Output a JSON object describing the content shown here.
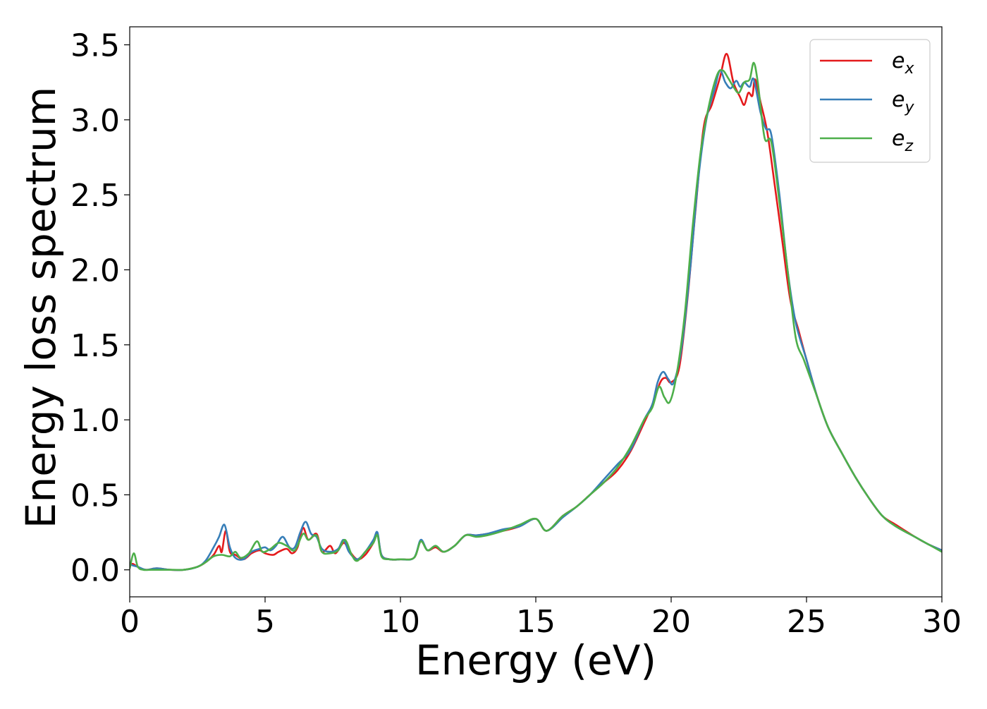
{
  "chart_data": {
    "type": "line",
    "title": "",
    "xlabel": "Energy (eV)",
    "ylabel": "Energy loss spectrum",
    "xlim": [
      0,
      30
    ],
    "ylim": [
      -0.18,
      3.62
    ],
    "xticks": [
      0,
      5,
      10,
      15,
      20,
      25,
      30
    ],
    "xtick_labels": [
      "0",
      "5",
      "10",
      "15",
      "20",
      "25",
      "30"
    ],
    "yticks": [
      0.0,
      0.5,
      1.0,
      1.5,
      2.0,
      2.5,
      3.0,
      3.5
    ],
    "ytick_labels": [
      "0.0",
      "0.5",
      "1.0",
      "1.5",
      "2.0",
      "2.5",
      "3.0",
      "3.5"
    ],
    "grid": false,
    "legend_position": "top-right",
    "series": [
      {
        "name": "e_x",
        "legend_base": "e",
        "legend_sub": "x",
        "color": "#e41a1c",
        "points": [
          [
            0,
            0.02
          ],
          [
            0.1,
            0.04
          ],
          [
            0.3,
            0.02
          ],
          [
            0.6,
            0.0
          ],
          [
            1.0,
            0.01
          ],
          [
            1.5,
            0.0
          ],
          [
            2.0,
            0.0
          ],
          [
            2.5,
            0.02
          ],
          [
            2.8,
            0.05
          ],
          [
            3.1,
            0.1
          ],
          [
            3.3,
            0.16
          ],
          [
            3.4,
            0.12
          ],
          [
            3.55,
            0.26
          ],
          [
            3.7,
            0.12
          ],
          [
            3.9,
            0.1
          ],
          [
            4.2,
            0.07
          ],
          [
            4.5,
            0.11
          ],
          [
            4.8,
            0.13
          ],
          [
            5.0,
            0.11
          ],
          [
            5.3,
            0.1
          ],
          [
            5.5,
            0.12
          ],
          [
            5.8,
            0.14
          ],
          [
            6.0,
            0.11
          ],
          [
            6.2,
            0.15
          ],
          [
            6.4,
            0.28
          ],
          [
            6.6,
            0.2
          ],
          [
            6.9,
            0.24
          ],
          [
            7.1,
            0.12
          ],
          [
            7.4,
            0.16
          ],
          [
            7.6,
            0.11
          ],
          [
            7.9,
            0.18
          ],
          [
            8.1,
            0.13
          ],
          [
            8.4,
            0.07
          ],
          [
            8.7,
            0.1
          ],
          [
            9.0,
            0.18
          ],
          [
            9.15,
            0.24
          ],
          [
            9.3,
            0.1
          ],
          [
            9.6,
            0.07
          ],
          [
            10.0,
            0.07
          ],
          [
            10.5,
            0.08
          ],
          [
            10.75,
            0.19
          ],
          [
            11.0,
            0.13
          ],
          [
            11.3,
            0.15
          ],
          [
            11.6,
            0.12
          ],
          [
            12.0,
            0.16
          ],
          [
            12.4,
            0.23
          ],
          [
            12.8,
            0.23
          ],
          [
            13.2,
            0.24
          ],
          [
            13.8,
            0.26
          ],
          [
            14.4,
            0.29
          ],
          [
            15.0,
            0.34
          ],
          [
            15.4,
            0.26
          ],
          [
            16.0,
            0.36
          ],
          [
            16.5,
            0.42
          ],
          [
            17.0,
            0.5
          ],
          [
            17.5,
            0.58
          ],
          [
            18.0,
            0.66
          ],
          [
            18.5,
            0.79
          ],
          [
            19.0,
            0.98
          ],
          [
            19.3,
            1.1
          ],
          [
            19.6,
            1.25
          ],
          [
            19.8,
            1.28
          ],
          [
            20.0,
            1.25
          ],
          [
            20.3,
            1.35
          ],
          [
            20.6,
            1.8
          ],
          [
            20.9,
            2.4
          ],
          [
            21.2,
            2.95
          ],
          [
            21.5,
            3.1
          ],
          [
            21.8,
            3.28
          ],
          [
            22.05,
            3.44
          ],
          [
            22.3,
            3.25
          ],
          [
            22.55,
            3.15
          ],
          [
            22.7,
            3.1
          ],
          [
            22.85,
            3.18
          ],
          [
            23.0,
            3.16
          ],
          [
            23.1,
            3.27
          ],
          [
            23.3,
            3.12
          ],
          [
            23.55,
            2.92
          ],
          [
            23.8,
            2.6
          ],
          [
            24.1,
            2.2
          ],
          [
            24.4,
            1.8
          ],
          [
            24.7,
            1.6
          ],
          [
            25.0,
            1.4
          ],
          [
            25.4,
            1.15
          ],
          [
            25.8,
            0.95
          ],
          [
            26.3,
            0.78
          ],
          [
            26.8,
            0.62
          ],
          [
            27.3,
            0.48
          ],
          [
            27.8,
            0.36
          ],
          [
            28.3,
            0.3
          ],
          [
            29.0,
            0.22
          ],
          [
            29.5,
            0.17
          ],
          [
            30.0,
            0.13
          ]
        ]
      },
      {
        "name": "e_y",
        "legend_base": "e",
        "legend_sub": "y",
        "color": "#377eb8",
        "points": [
          [
            0,
            0.04
          ],
          [
            0.1,
            0.03
          ],
          [
            0.3,
            0.02
          ],
          [
            0.6,
            0.0
          ],
          [
            1.0,
            0.01
          ],
          [
            1.5,
            0.0
          ],
          [
            2.0,
            0.0
          ],
          [
            2.5,
            0.02
          ],
          [
            2.8,
            0.06
          ],
          [
            3.1,
            0.15
          ],
          [
            3.3,
            0.22
          ],
          [
            3.5,
            0.3
          ],
          [
            3.7,
            0.15
          ],
          [
            3.9,
            0.08
          ],
          [
            4.2,
            0.07
          ],
          [
            4.5,
            0.12
          ],
          [
            4.8,
            0.14
          ],
          [
            5.0,
            0.15
          ],
          [
            5.2,
            0.13
          ],
          [
            5.4,
            0.16
          ],
          [
            5.65,
            0.22
          ],
          [
            5.9,
            0.15
          ],
          [
            6.1,
            0.15
          ],
          [
            6.3,
            0.25
          ],
          [
            6.5,
            0.32
          ],
          [
            6.7,
            0.24
          ],
          [
            6.9,
            0.22
          ],
          [
            7.1,
            0.14
          ],
          [
            7.4,
            0.12
          ],
          [
            7.7,
            0.14
          ],
          [
            7.9,
            0.2
          ],
          [
            8.1,
            0.12
          ],
          [
            8.4,
            0.07
          ],
          [
            8.7,
            0.12
          ],
          [
            9.0,
            0.2
          ],
          [
            9.15,
            0.25
          ],
          [
            9.3,
            0.1
          ],
          [
            9.6,
            0.07
          ],
          [
            10.0,
            0.07
          ],
          [
            10.5,
            0.08
          ],
          [
            10.75,
            0.2
          ],
          [
            11.0,
            0.13
          ],
          [
            11.3,
            0.16
          ],
          [
            11.6,
            0.12
          ],
          [
            12.0,
            0.16
          ],
          [
            12.4,
            0.23
          ],
          [
            12.8,
            0.23
          ],
          [
            13.2,
            0.24
          ],
          [
            13.8,
            0.27
          ],
          [
            14.4,
            0.29
          ],
          [
            15.0,
            0.34
          ],
          [
            15.4,
            0.26
          ],
          [
            16.0,
            0.35
          ],
          [
            16.5,
            0.42
          ],
          [
            17.0,
            0.5
          ],
          [
            17.5,
            0.6
          ],
          [
            18.0,
            0.7
          ],
          [
            18.5,
            0.8
          ],
          [
            19.0,
            1.0
          ],
          [
            19.3,
            1.1
          ],
          [
            19.5,
            1.25
          ],
          [
            19.7,
            1.32
          ],
          [
            19.9,
            1.27
          ],
          [
            20.1,
            1.25
          ],
          [
            20.4,
            1.5
          ],
          [
            20.7,
            2.0
          ],
          [
            21.0,
            2.6
          ],
          [
            21.3,
            3.0
          ],
          [
            21.6,
            3.2
          ],
          [
            21.8,
            3.33
          ],
          [
            22.0,
            3.25
          ],
          [
            22.2,
            3.21
          ],
          [
            22.4,
            3.26
          ],
          [
            22.55,
            3.22
          ],
          [
            22.7,
            3.25
          ],
          [
            22.9,
            3.22
          ],
          [
            23.05,
            3.27
          ],
          [
            23.3,
            3.05
          ],
          [
            23.5,
            2.94
          ],
          [
            23.7,
            2.9
          ],
          [
            24.0,
            2.5
          ],
          [
            24.3,
            2.0
          ],
          [
            24.6,
            1.65
          ],
          [
            25.0,
            1.4
          ],
          [
            25.4,
            1.15
          ],
          [
            25.8,
            0.95
          ],
          [
            26.3,
            0.78
          ],
          [
            26.8,
            0.62
          ],
          [
            27.3,
            0.48
          ],
          [
            27.8,
            0.36
          ],
          [
            28.3,
            0.29
          ],
          [
            29.0,
            0.22
          ],
          [
            29.5,
            0.17
          ],
          [
            30.0,
            0.13
          ]
        ]
      },
      {
        "name": "e_z",
        "legend_base": "e",
        "legend_sub": "z",
        "color": "#4daf4a",
        "points": [
          [
            0,
            0.01
          ],
          [
            0.15,
            0.11
          ],
          [
            0.3,
            0.02
          ],
          [
            0.5,
            0.0
          ],
          [
            0.8,
            0.0
          ],
          [
            1.2,
            0.0
          ],
          [
            1.6,
            0.0
          ],
          [
            2.0,
            0.0
          ],
          [
            2.5,
            0.02
          ],
          [
            2.8,
            0.05
          ],
          [
            3.1,
            0.09
          ],
          [
            3.4,
            0.1
          ],
          [
            3.7,
            0.09
          ],
          [
            3.9,
            0.12
          ],
          [
            4.1,
            0.08
          ],
          [
            4.4,
            0.11
          ],
          [
            4.7,
            0.19
          ],
          [
            4.9,
            0.12
          ],
          [
            5.2,
            0.14
          ],
          [
            5.5,
            0.18
          ],
          [
            5.8,
            0.16
          ],
          [
            6.1,
            0.13
          ],
          [
            6.4,
            0.24
          ],
          [
            6.6,
            0.2
          ],
          [
            6.9,
            0.23
          ],
          [
            7.1,
            0.12
          ],
          [
            7.4,
            0.11
          ],
          [
            7.7,
            0.13
          ],
          [
            7.95,
            0.2
          ],
          [
            8.2,
            0.1
          ],
          [
            8.4,
            0.06
          ],
          [
            8.7,
            0.12
          ],
          [
            9.0,
            0.18
          ],
          [
            9.15,
            0.23
          ],
          [
            9.3,
            0.09
          ],
          [
            9.6,
            0.07
          ],
          [
            10.0,
            0.07
          ],
          [
            10.5,
            0.08
          ],
          [
            10.75,
            0.19
          ],
          [
            11.0,
            0.13
          ],
          [
            11.3,
            0.16
          ],
          [
            11.6,
            0.12
          ],
          [
            12.0,
            0.16
          ],
          [
            12.4,
            0.23
          ],
          [
            12.8,
            0.22
          ],
          [
            13.2,
            0.23
          ],
          [
            13.8,
            0.26
          ],
          [
            14.4,
            0.3
          ],
          [
            15.0,
            0.34
          ],
          [
            15.4,
            0.26
          ],
          [
            16.0,
            0.36
          ],
          [
            16.5,
            0.42
          ],
          [
            17.0,
            0.5
          ],
          [
            17.5,
            0.58
          ],
          [
            18.0,
            0.68
          ],
          [
            18.5,
            0.82
          ],
          [
            19.0,
            1.0
          ],
          [
            19.3,
            1.08
          ],
          [
            19.55,
            1.22
          ],
          [
            19.75,
            1.15
          ],
          [
            19.95,
            1.12
          ],
          [
            20.2,
            1.3
          ],
          [
            20.5,
            1.7
          ],
          [
            20.8,
            2.3
          ],
          [
            21.1,
            2.8
          ],
          [
            21.4,
            3.1
          ],
          [
            21.7,
            3.3
          ],
          [
            21.9,
            3.33
          ],
          [
            22.1,
            3.28
          ],
          [
            22.3,
            3.22
          ],
          [
            22.5,
            3.18
          ],
          [
            22.7,
            3.25
          ],
          [
            22.9,
            3.27
          ],
          [
            23.05,
            3.38
          ],
          [
            23.2,
            3.25
          ],
          [
            23.45,
            2.88
          ],
          [
            23.7,
            2.85
          ],
          [
            24.0,
            2.45
          ],
          [
            24.3,
            2.0
          ],
          [
            24.6,
            1.55
          ],
          [
            24.9,
            1.4
          ],
          [
            25.3,
            1.2
          ],
          [
            25.8,
            0.95
          ],
          [
            26.3,
            0.78
          ],
          [
            26.8,
            0.62
          ],
          [
            27.3,
            0.48
          ],
          [
            27.8,
            0.36
          ],
          [
            28.3,
            0.29
          ],
          [
            29.0,
            0.22
          ],
          [
            29.5,
            0.17
          ],
          [
            30.0,
            0.12
          ]
        ]
      }
    ]
  }
}
